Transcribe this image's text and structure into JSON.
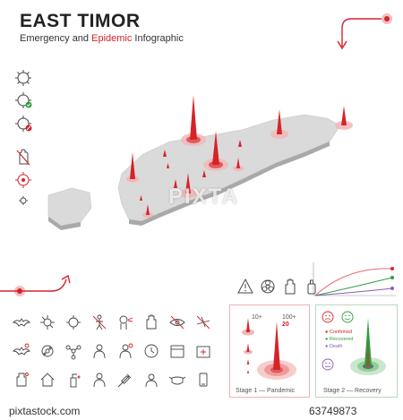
{
  "header": {
    "title": "EAST TIMOR",
    "subtitle_prefix": "Emergency and ",
    "subtitle_accent": "Epidemic",
    "subtitle_suffix": " Infographic"
  },
  "watermark": "PIXTA",
  "stages": {
    "stage1": {
      "label": "Stage 1 — Pandemic",
      "low_value": "10+",
      "high_value": "100+",
      "high_sub": "20"
    },
    "stage2": {
      "label": "Stage 2 — Recovery",
      "legend": [
        {
          "label": "Confirmed",
          "color": "#d6232a"
        },
        {
          "label": "Recovered",
          "color": "#2e9e3e"
        },
        {
          "label": "Death",
          "color": "#8e5bb5"
        }
      ]
    }
  },
  "footer": {
    "brand": "pixtastock.com",
    "image_id": "63749873"
  },
  "colors": {
    "accent_red": "#d6232a",
    "map_gray": "#d9d9d9",
    "recovery_green": "#2e9e3e",
    "death_purple": "#8e5bb5"
  },
  "icons": {
    "left_column": [
      "virus-icon",
      "virus-check-icon",
      "virus-block-icon",
      "no-touch-icon",
      "virus-red-icon",
      "small-virus-icon"
    ],
    "hazard_row": [
      "warning-icon",
      "biohazard-icon",
      "stop-hand-icon",
      "sanitizer-icon"
    ],
    "grid": [
      "bat-icon",
      "virus-spread-icon",
      "virus-icon",
      "no-handshake-icon",
      "sneeze-icon",
      "hand-wash-icon",
      "no-eye-touch-icon",
      "no-flight-icon",
      "bat-virus-icon",
      "virus-cell-icon",
      "molecule-icon",
      "doctor-icon",
      "stay-home-icon",
      "clock-icon",
      "calendar-icon",
      "hospital-icon",
      "hand-sanitize-icon",
      "home-icon",
      "disinfect-icon",
      "person-virus-icon",
      "vaccine-icon",
      "virus-test-icon",
      "mask-icon",
      "phone-icon"
    ]
  }
}
